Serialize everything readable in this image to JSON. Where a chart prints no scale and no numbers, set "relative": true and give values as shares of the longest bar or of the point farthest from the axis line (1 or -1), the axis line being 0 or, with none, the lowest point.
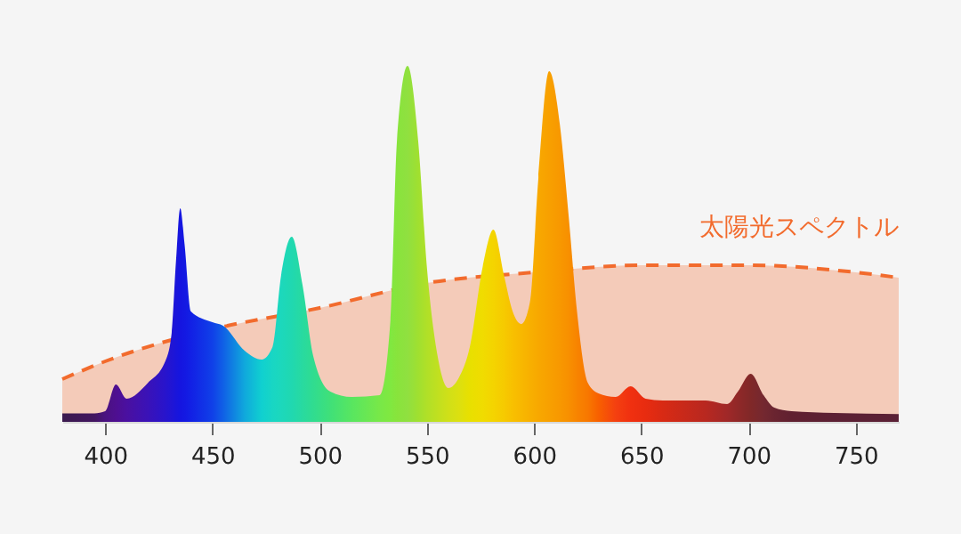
{
  "chart_data": {
    "type": "area",
    "relative": true,
    "xlim": [
      380,
      770
    ],
    "xticks": [
      400,
      450,
      500,
      550,
      600,
      650,
      700,
      750
    ],
    "grid": false,
    "series": [
      {
        "name": "太陽光スペクトル",
        "line_style": "dashed",
        "color": "#f26b2d",
        "x": [
          380,
          400,
          450,
          500,
          550,
          600,
          650,
          700,
          750,
          770
        ],
        "values": [
          0.12,
          0.17,
          0.26,
          0.32,
          0.39,
          0.42,
          0.44,
          0.44,
          0.42,
          0.405
        ]
      },
      {
        "x": [
          380,
          395,
          400,
          405,
          410,
          420,
          428,
          431,
          433,
          435,
          437,
          440,
          450,
          455,
          465,
          473,
          478,
          482,
          487,
          492,
          497,
          505,
          515,
          528,
          533,
          536,
          541,
          546,
          550,
          555,
          560,
          565,
          570,
          576,
          581,
          586,
          590,
          594,
          598,
          602,
          607,
          612,
          616,
          620,
          625,
          630,
          638,
          645,
          652,
          660,
          680,
          690,
          695,
          701,
          707,
          712,
          720,
          740,
          770
        ],
        "values": [
          0.024,
          0.024,
          0.03,
          0.105,
          0.065,
          0.11,
          0.17,
          0.25,
          0.45,
          0.6,
          0.5,
          0.31,
          0.28,
          0.27,
          0.2,
          0.175,
          0.21,
          0.41,
          0.52,
          0.385,
          0.185,
          0.085,
          0.07,
          0.075,
          0.285,
          0.785,
          1.0,
          0.785,
          0.435,
          0.185,
          0.095,
          0.125,
          0.21,
          0.435,
          0.54,
          0.41,
          0.31,
          0.275,
          0.335,
          0.685,
          0.985,
          0.835,
          0.585,
          0.31,
          0.11,
          0.08,
          0.07,
          0.1,
          0.065,
          0.06,
          0.06,
          0.05,
          0.085,
          0.135,
          0.075,
          0.04,
          0.03,
          0.025,
          0.022
        ],
        "colors": [
          "#3b1a4e",
          "#421660",
          "#4a1280",
          "#4e0f90",
          "#4a10a0",
          "#3a12b8",
          "#2814cc",
          "#2015d4",
          "#1a15da",
          "#1515e0",
          "#1418e2",
          "#1220e5",
          "#1040e8",
          "#1060e6",
          "#10a8dc",
          "#10d0d0",
          "#18d6c4",
          "#1cd8bc",
          "#20d8b0",
          "#28daa0",
          "#30dc90",
          "#40e078",
          "#58e660",
          "#78e848",
          "#80e840",
          "#88e43c",
          "#90e040",
          "#a0e030",
          "#b0e028",
          "#c0e020",
          "#d0e018",
          "#dce010",
          "#e8e000",
          "#f0dc00",
          "#f4d400",
          "#f6ca00",
          "#f8c000",
          "#f8b800",
          "#f8b000",
          "#f8a800",
          "#f8a000",
          "#f89800",
          "#f89000",
          "#f88400",
          "#f87800",
          "#f86000",
          "#f44010",
          "#f03010",
          "#e82c10",
          "#d82a14",
          "#b82820",
          "#a02828",
          "#902828",
          "#802828",
          "#742830",
          "#6a2430",
          "#602030",
          "#5c2034",
          "#5a2035"
        ]
      }
    ]
  }
}
